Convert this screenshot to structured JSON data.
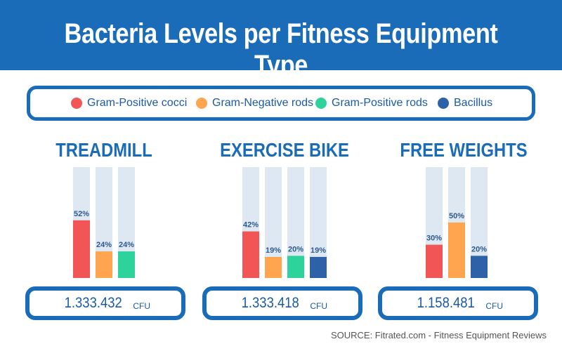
{
  "header": {
    "title": "Bacteria Levels per Fitness Equipment Type"
  },
  "legend": [
    {
      "label": "Gram-Positive cocci",
      "color": "#f25555"
    },
    {
      "label": "Gram-Negative rods",
      "color": "#ffa550"
    },
    {
      "label": "Gram-Positive rods",
      "color": "#2ed39c"
    },
    {
      "label": "Bacillus",
      "color": "#2e62a8"
    }
  ],
  "chart_data": [
    {
      "type": "bar",
      "title": "TREADMILL",
      "categories": [
        "Gram-Positive cocci",
        "Gram-Negative rods",
        "Gram-Positive rods"
      ],
      "values": [
        52,
        24,
        24
      ],
      "value_labels": [
        "52%",
        "24%",
        "24%"
      ],
      "ylim": [
        0,
        100
      ],
      "cfu": {
        "value": "1.333.432",
        "unit": "CFU"
      }
    },
    {
      "type": "bar",
      "title": "EXERCISE BIKE",
      "categories": [
        "Gram-Positive cocci",
        "Gram-Negative rods",
        "Gram-Positive rods",
        "Bacillus"
      ],
      "values": [
        42,
        19,
        20,
        19
      ],
      "value_labels": [
        "42%",
        "19%",
        "20%",
        "19%"
      ],
      "ylim": [
        0,
        100
      ],
      "cfu": {
        "value": "1.333.418",
        "unit": "CFU"
      }
    },
    {
      "type": "bar",
      "title": "FREE WEIGHTS",
      "categories": [
        "Gram-Positive cocci",
        "Gram-Negative rods",
        "Bacillus"
      ],
      "values": [
        30,
        50,
        20
      ],
      "value_labels": [
        "30%",
        "50%",
        "20%"
      ],
      "ylim": [
        0,
        100
      ],
      "cfu": {
        "value": "1.158.481",
        "unit": "CFU"
      }
    }
  ],
  "track_color": "#dde8f2",
  "label_color": "#2e5a8e",
  "source": "SOURCE: Fitrated.com - Fitness Equipment Reviews"
}
